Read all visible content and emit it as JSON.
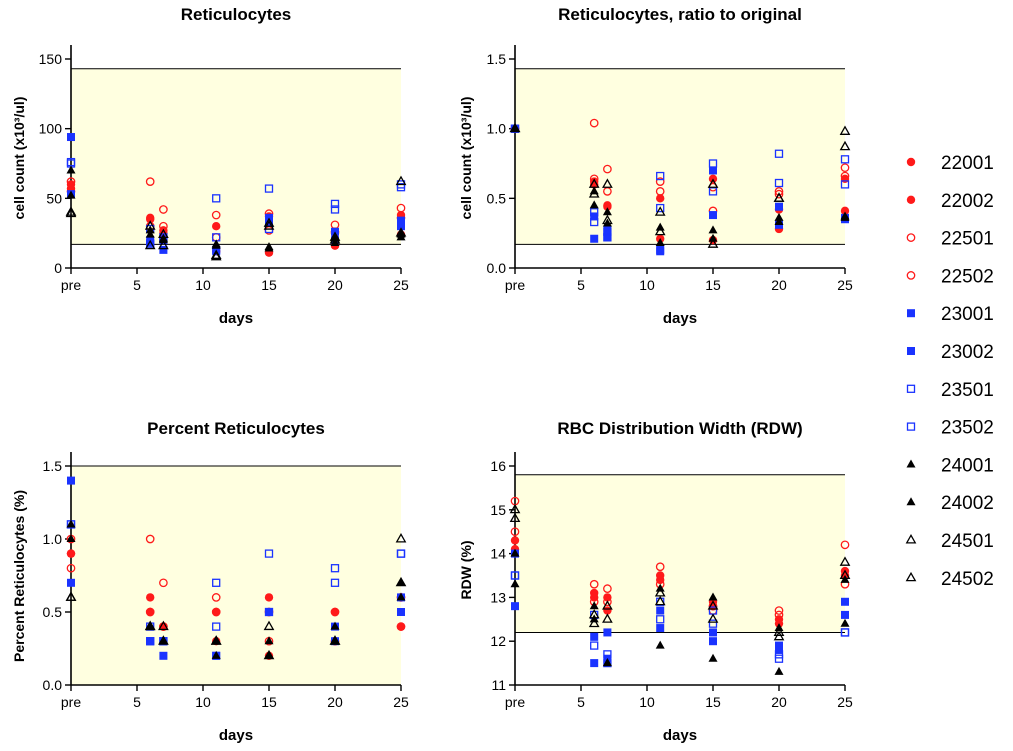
{
  "legend": [
    "22001",
    "22002",
    "22501",
    "22502",
    "23001",
    "23002",
    "23501",
    "23502",
    "24001",
    "24002",
    "24501",
    "24502"
  ],
  "colors": {
    "red": "#ff1a1a",
    "blue": "#1a33ff",
    "black": "#000000",
    "shade": "#ffffe0"
  },
  "marker_styles": {
    "22001": {
      "shape": "circle",
      "fill": true,
      "color": "red"
    },
    "22002": {
      "shape": "circle",
      "fill": true,
      "color": "red"
    },
    "22501": {
      "shape": "circle",
      "fill": false,
      "color": "red"
    },
    "22502": {
      "shape": "circle",
      "fill": false,
      "color": "red"
    },
    "23001": {
      "shape": "square",
      "fill": true,
      "color": "blue"
    },
    "23002": {
      "shape": "square",
      "fill": true,
      "color": "blue"
    },
    "23501": {
      "shape": "square",
      "fill": false,
      "color": "blue"
    },
    "23502": {
      "shape": "square",
      "fill": false,
      "color": "blue"
    },
    "24001": {
      "shape": "triangle",
      "fill": true,
      "color": "black"
    },
    "24002": {
      "shape": "triangle",
      "fill": true,
      "color": "black"
    },
    "24501": {
      "shape": "triangle",
      "fill": false,
      "color": "black"
    },
    "24502": {
      "shape": "triangle",
      "fill": false,
      "color": "black"
    }
  },
  "chart_data": [
    {
      "id": "retic",
      "type": "scatter",
      "title": "Reticulocytes",
      "xlabel": "days",
      "ylabel": "cell count (x10³/ul)",
      "x_ticks": [
        {
          "v": 0,
          "label": "pre"
        },
        {
          "v": 5,
          "label": "5"
        },
        {
          "v": 10,
          "label": "10"
        },
        {
          "v": 15,
          "label": "15"
        },
        {
          "v": 20,
          "label": "20"
        },
        {
          "v": 25,
          "label": "25"
        }
      ],
      "xlim": [
        0,
        25
      ],
      "ylim": [
        0,
        150
      ],
      "y_ticks": [
        {
          "v": 0,
          "label": "0"
        },
        {
          "v": 50,
          "label": "50"
        },
        {
          "v": 100,
          "label": "100"
        },
        {
          "v": 150,
          "label": "150"
        }
      ],
      "reference_range": [
        17,
        143
      ],
      "x": [
        0,
        6,
        7,
        11,
        15,
        20,
        25
      ],
      "series": [
        {
          "name": "22001",
          "values": [
            60,
            36,
            27,
            30,
            37,
            25,
            38
          ]
        },
        {
          "name": "22002",
          "values": [
            57,
            35,
            25,
            12,
            11,
            16,
            24
          ]
        },
        {
          "name": "22501",
          "values": [
            62,
            62,
            42,
            38,
            39,
            31,
            43
          ]
        },
        {
          "name": "22502",
          "values": [
            55,
            30,
            30,
            22,
            27,
            26,
            36
          ]
        },
        {
          "name": "23001",
          "values": [
            94,
            18,
            13,
            13,
            36,
            20,
            30
          ]
        },
        {
          "name": "23002",
          "values": [
            53,
            20,
            20,
            12,
            33,
            26,
            34
          ]
        },
        {
          "name": "23501",
          "values": [
            75,
            28,
            22,
            50,
            57,
            46,
            60
          ]
        },
        {
          "name": "23502",
          "values": [
            76,
            17,
            21,
            22,
            28,
            42,
            58
          ]
        },
        {
          "name": "24001",
          "values": [
            70,
            24,
            21,
            17,
            15,
            21,
            24
          ]
        },
        {
          "name": "24002",
          "values": [
            52,
            27,
            20,
            16,
            14,
            18,
            22
          ]
        },
        {
          "name": "24501",
          "values": [
            39,
            30,
            16,
            9,
            32,
            20,
            62
          ]
        },
        {
          "name": "24502",
          "values": [
            40,
            16,
            24,
            8,
            30,
            22,
            25
          ]
        }
      ]
    },
    {
      "id": "ratio",
      "type": "scatter",
      "title": "Reticulocytes, ratio to original",
      "xlabel": "days",
      "ylabel": "cell count (x10³/ul)",
      "x_ticks": [
        {
          "v": 0,
          "label": "pre"
        },
        {
          "v": 5,
          "label": "5"
        },
        {
          "v": 10,
          "label": "10"
        },
        {
          "v": 15,
          "label": "15"
        },
        {
          "v": 20,
          "label": "20"
        },
        {
          "v": 25,
          "label": "25"
        }
      ],
      "xlim": [
        0,
        25
      ],
      "ylim": [
        0,
        1.5
      ],
      "y_ticks": [
        {
          "v": 0,
          "label": "0.0"
        },
        {
          "v": 0.5,
          "label": "0.5"
        },
        {
          "v": 1.0,
          "label": "1.0"
        },
        {
          "v": 1.5,
          "label": "1.5"
        }
      ],
      "reference_range": [
        0.17,
        1.43
      ],
      "x": [
        0,
        6,
        7,
        11,
        15,
        20,
        25
      ],
      "series": [
        {
          "name": "22001",
          "values": [
            1.0,
            0.6,
            0.45,
            0.5,
            0.64,
            0.42,
            0.64
          ]
        },
        {
          "name": "22002",
          "values": [
            1.0,
            0.62,
            0.44,
            0.21,
            0.2,
            0.28,
            0.41
          ]
        },
        {
          "name": "22501",
          "values": [
            1.0,
            1.04,
            0.71,
            0.62,
            0.58,
            0.55,
            0.72
          ]
        },
        {
          "name": "22502",
          "values": [
            1.0,
            0.64,
            0.55,
            0.55,
            0.41,
            0.53,
            0.66
          ]
        },
        {
          "name": "23001",
          "values": [
            1.0,
            0.21,
            0.22,
            0.12,
            0.38,
            0.31,
            0.35
          ]
        },
        {
          "name": "23002",
          "values": [
            1.0,
            0.37,
            0.27,
            0.13,
            0.7,
            0.44,
            0.36
          ]
        },
        {
          "name": "23501",
          "values": [
            1.0,
            0.4,
            0.26,
            0.66,
            0.75,
            0.61,
            0.78
          ]
        },
        {
          "name": "23502",
          "values": [
            1.0,
            0.33,
            0.22,
            0.43,
            0.55,
            0.82,
            0.6
          ]
        },
        {
          "name": "24001",
          "values": [
            1.0,
            0.45,
            0.32,
            0.29,
            0.27,
            0.36,
            0.36
          ]
        },
        {
          "name": "24002",
          "values": [
            1.0,
            0.55,
            0.4,
            0.18,
            0.21,
            0.33,
            0.37
          ]
        },
        {
          "name": "24501",
          "values": [
            1.0,
            0.6,
            0.6,
            0.26,
            0.6,
            0.5,
            0.98
          ]
        },
        {
          "name": "24502",
          "values": [
            1.0,
            0.53,
            0.34,
            0.4,
            0.17,
            0.5,
            0.87
          ]
        }
      ]
    },
    {
      "id": "pct",
      "type": "scatter",
      "title": "Percent Reticulocytes",
      "xlabel": "days",
      "ylabel": "Percent Reticulocytes (%)",
      "x_ticks": [
        {
          "v": 0,
          "label": "pre"
        },
        {
          "v": 5,
          "label": "5"
        },
        {
          "v": 10,
          "label": "10"
        },
        {
          "v": 15,
          "label": "15"
        },
        {
          "v": 20,
          "label": "20"
        },
        {
          "v": 25,
          "label": "25"
        }
      ],
      "xlim": [
        0,
        25
      ],
      "ylim": [
        0,
        1.5
      ],
      "y_ticks": [
        {
          "v": 0,
          "label": "0.0"
        },
        {
          "v": 0.5,
          "label": "0.5"
        },
        {
          "v": 1.0,
          "label": "1.0"
        },
        {
          "v": 1.5,
          "label": "1.5"
        }
      ],
      "reference_range": [
        null,
        1.5
      ],
      "x": [
        0,
        6,
        7,
        11,
        15,
        20,
        25
      ],
      "series": [
        {
          "name": "22001",
          "values": [
            0.9,
            0.6,
            0.4,
            0.5,
            0.6,
            0.5,
            0.6
          ]
        },
        {
          "name": "22002",
          "values": [
            0.9,
            0.5,
            0.4,
            0.3,
            0.2,
            0.3,
            0.4
          ]
        },
        {
          "name": "22501",
          "values": [
            1.0,
            1.0,
            0.7,
            0.6,
            0.5,
            0.5,
            0.6
          ]
        },
        {
          "name": "22502",
          "values": [
            0.8,
            0.5,
            0.4,
            0.5,
            0.3,
            0.3,
            0.4
          ]
        },
        {
          "name": "23001",
          "values": [
            1.4,
            0.3,
            0.2,
            0.2,
            0.5,
            0.3,
            0.6
          ]
        },
        {
          "name": "23002",
          "values": [
            0.7,
            0.3,
            0.3,
            0.2,
            0.5,
            0.4,
            0.5
          ]
        },
        {
          "name": "23501",
          "values": [
            1.1,
            0.4,
            0.3,
            0.7,
            0.9,
            0.7,
            0.9
          ]
        },
        {
          "name": "23502",
          "values": [
            1.1,
            0.3,
            0.3,
            0.4,
            0.5,
            0.8,
            0.9
          ]
        },
        {
          "name": "24001",
          "values": [
            1.1,
            0.4,
            0.3,
            0.3,
            0.3,
            0.4,
            0.7
          ]
        },
        {
          "name": "24002",
          "values": [
            1.0,
            0.4,
            0.3,
            0.2,
            0.2,
            0.3,
            0.6
          ]
        },
        {
          "name": "24501",
          "values": [
            0.6,
            0.4,
            0.4,
            0.3,
            0.4,
            0.3,
            1.0
          ]
        },
        {
          "name": "24502",
          "values": [
            0.6,
            0.4,
            0.3,
            0.3,
            0.2,
            0.3,
            0.7
          ]
        }
      ]
    },
    {
      "id": "rdw",
      "type": "scatter",
      "title": "RBC Distribution Width (RDW)",
      "xlabel": "days",
      "ylabel": "RDW (%)",
      "x_ticks": [
        {
          "v": 0,
          "label": "pre"
        },
        {
          "v": 5,
          "label": "5"
        },
        {
          "v": 10,
          "label": "10"
        },
        {
          "v": 15,
          "label": "15"
        },
        {
          "v": 20,
          "label": "20"
        },
        {
          "v": 25,
          "label": "25"
        }
      ],
      "xlim": [
        0,
        25
      ],
      "ylim": [
        11,
        16
      ],
      "y_ticks": [
        {
          "v": 11,
          "label": "11"
        },
        {
          "v": 12,
          "label": "12"
        },
        {
          "v": 13,
          "label": "13"
        },
        {
          "v": 14,
          "label": "14"
        },
        {
          "v": 15,
          "label": "15"
        },
        {
          "v": 16,
          "label": "16"
        }
      ],
      "reference_range": [
        12.2,
        15.8
      ],
      "x": [
        0,
        6,
        7,
        11,
        15,
        20,
        25
      ],
      "series": [
        {
          "name": "22001",
          "values": [
            14.3,
            13.1,
            13.0,
            13.5,
            12.9,
            12.5,
            13.6
          ]
        },
        {
          "name": "22002",
          "values": [
            14.1,
            13.0,
            12.7,
            13.4,
            12.8,
            12.4,
            13.5
          ]
        },
        {
          "name": "22501",
          "values": [
            15.2,
            13.3,
            13.2,
            13.7,
            12.8,
            12.7,
            14.2
          ]
        },
        {
          "name": "22502",
          "values": [
            14.5,
            12.9,
            12.9,
            13.3,
            12.7,
            12.6,
            13.3
          ]
        },
        {
          "name": "23001",
          "values": [
            12.8,
            11.5,
            11.6,
            12.3,
            12.2,
            11.9,
            12.9
          ]
        },
        {
          "name": "23002",
          "values": [
            14.0,
            12.1,
            12.2,
            12.7,
            12.0,
            11.8,
            12.6
          ]
        },
        {
          "name": "23501",
          "values": [
            13.5,
            11.9,
            11.7,
            12.5,
            12.4,
            11.6,
            12.2
          ]
        },
        {
          "name": "23502",
          "values": [
            13.5,
            12.6,
            11.5,
            12.9,
            12.7,
            11.7,
            12.2
          ]
        },
        {
          "name": "24001",
          "values": [
            13.3,
            12.8,
            11.5,
            11.9,
            13.0,
            11.3,
            12.4
          ]
        },
        {
          "name": "24002",
          "values": [
            14.0,
            12.5,
            11.5,
            13.2,
            11.6,
            12.3,
            13.4
          ]
        },
        {
          "name": "24501",
          "values": [
            15.0,
            12.4,
            12.5,
            12.9,
            12.8,
            12.2,
            13.8
          ]
        },
        {
          "name": "24502",
          "values": [
            14.8,
            12.6,
            12.8,
            13.1,
            12.5,
            12.1,
            13.5
          ]
        }
      ]
    }
  ]
}
